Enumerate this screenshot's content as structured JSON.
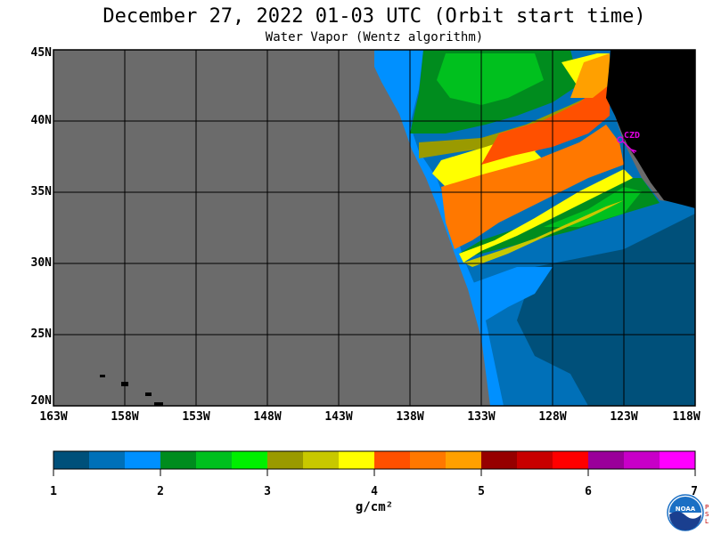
{
  "title": "December 27, 2022  01-03 UTC  (Orbit start time)",
  "subtitle": "Water Vapor (Wentz algorithm)",
  "map": {
    "lat_labels": [
      "45N",
      "40N",
      "35N",
      "30N",
      "25N",
      "20N"
    ],
    "lon_labels": [
      "163W",
      "158W",
      "153W",
      "148W",
      "143W",
      "138W",
      "133W",
      "128W",
      "123W",
      "118W"
    ],
    "station": {
      "name": "CZD",
      "color": "#e000e0"
    },
    "colors": {
      "no_data": "#6b6b6b",
      "land": "#000000"
    }
  },
  "colorbar": {
    "colors": [
      "#00507a",
      "#0070b8",
      "#0090ff",
      "#008c1e",
      "#00c01e",
      "#00f000",
      "#9a9a00",
      "#c8c800",
      "#ffff00",
      "#ff5000",
      "#ff7800",
      "#ffa000",
      "#960000",
      "#c80000",
      "#ff0000",
      "#9a009a",
      "#c800c8",
      "#ff00ff"
    ],
    "tick_labels": [
      "1",
      "2",
      "3",
      "4",
      "5",
      "6",
      "7"
    ],
    "units": "g/cm²"
  },
  "logo": {
    "text": "NOAA",
    "side_text": "PSL",
    "icon": "noaa-logo-icon"
  }
}
